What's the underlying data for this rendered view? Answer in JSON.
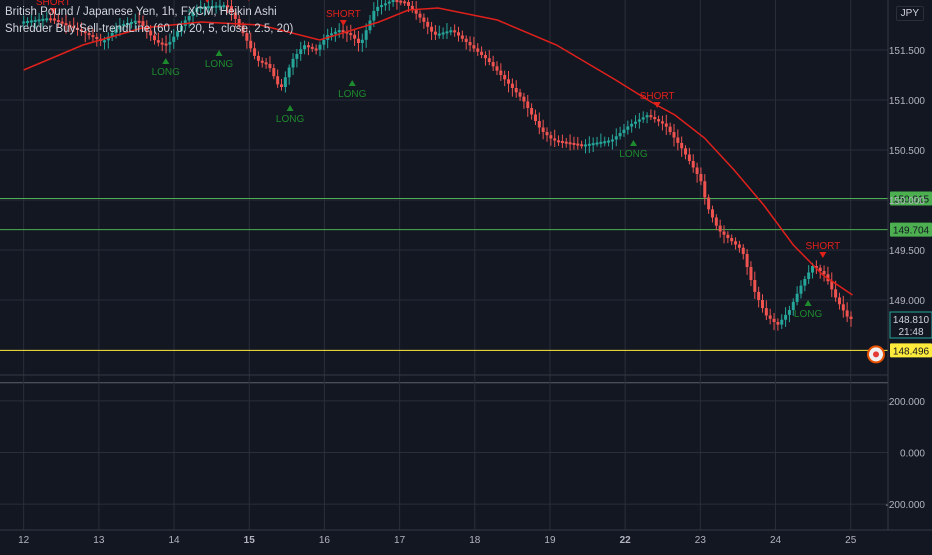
{
  "header": {
    "line1": "British Pound / Japanese Yen, 1h, FXCM, Heikin Ashi",
    "line2": "Shredder Buy-Sell-trendLine (60, 0, 20, 5, close, 2.5, 20)",
    "currency": "JPY"
  },
  "chart_data": {
    "type": "candlestick",
    "symbol": "GBPJPY",
    "timeframe": "1h",
    "colors": {
      "up": "#26a69a",
      "down": "#ef5350",
      "trendline": "#e0201b",
      "grid": "#2a2e39",
      "background": "#131722",
      "signal_long": "#1e8a2e",
      "signal_short": "#e0201b",
      "level_green": "#4caf50",
      "level_yellow": "#ffeb3b"
    },
    "x_ticks": [
      "12",
      "13",
      "14",
      "15",
      "16",
      "17",
      "18",
      "19",
      "22",
      "23",
      "24",
      "25"
    ],
    "bold_x_ticks": [
      "15",
      "22"
    ],
    "price_ticks": [
      "151.500",
      "151.000",
      "150.500",
      "150.000",
      "149.500",
      "149.000"
    ],
    "price_ylim": [
      148.25,
      152.0
    ],
    "osc_ticks": [
      "200.000",
      "0.000",
      "-200.000"
    ],
    "osc_ylim": [
      -300,
      300
    ],
    "path": [
      [
        12,
        151.78
      ],
      [
        12.5,
        151.82
      ],
      [
        13,
        151.7
      ],
      [
        13.4,
        151.58
      ],
      [
        13.7,
        151.75
      ],
      [
        14,
        151.8
      ],
      [
        14.3,
        151.58
      ],
      [
        14.5,
        151.55
      ],
      [
        14.8,
        151.8
      ],
      [
        15,
        151.93
      ],
      [
        15.5,
        151.95
      ],
      [
        15.7,
        151.75
      ],
      [
        16,
        151.4
      ],
      [
        16.2,
        151.35
      ],
      [
        16.4,
        151.1
      ],
      [
        16.6,
        151.4
      ],
      [
        16.8,
        151.55
      ],
      [
        17,
        151.5
      ],
      [
        17.2,
        151.65
      ],
      [
        17.4,
        151.7
      ],
      [
        17.6,
        151.65
      ],
      [
        17.75,
        151.55
      ],
      [
        18,
        151.92
      ],
      [
        18.3,
        152.0
      ],
      [
        18.5,
        151.98
      ],
      [
        18.8,
        151.8
      ],
      [
        19,
        151.65
      ],
      [
        19.3,
        151.7
      ],
      [
        19.6,
        151.55
      ],
      [
        19.9,
        151.4
      ],
      [
        20.2,
        151.2
      ],
      [
        20.5,
        151.0
      ],
      [
        20.8,
        150.7
      ],
      [
        21,
        150.6
      ],
      [
        21.5,
        150.55
      ],
      [
        22,
        150.6
      ],
      [
        22.3,
        150.75
      ],
      [
        22.6,
        150.85
      ],
      [
        22.9,
        150.75
      ],
      [
        23.2,
        150.5
      ],
      [
        23.5,
        150.2
      ],
      [
        23.6,
        149.95
      ],
      [
        23.8,
        149.7
      ],
      [
        24,
        149.6
      ],
      [
        24.2,
        149.5
      ],
      [
        24.4,
        149.1
      ],
      [
        24.6,
        148.85
      ],
      [
        24.8,
        148.75
      ],
      [
        25,
        148.9
      ],
      [
        25.2,
        149.15
      ],
      [
        25.4,
        149.35
      ],
      [
        25.6,
        149.25
      ],
      [
        25.8,
        149.0
      ],
      [
        26,
        148.81
      ]
    ],
    "trendline": [
      [
        12,
        151.3
      ],
      [
        13,
        151.55
      ],
      [
        14,
        151.72
      ],
      [
        15,
        151.78
      ],
      [
        16,
        151.75
      ],
      [
        17,
        151.6
      ],
      [
        18,
        151.78
      ],
      [
        18.5,
        151.9
      ],
      [
        19,
        151.92
      ],
      [
        20,
        151.8
      ],
      [
        21,
        151.55
      ],
      [
        22,
        151.2
      ],
      [
        22.6,
        150.98
      ],
      [
        23,
        150.85
      ],
      [
        23.5,
        150.62
      ],
      [
        24,
        150.3
      ],
      [
        24.5,
        149.95
      ],
      [
        25,
        149.55
      ],
      [
        25.5,
        149.25
      ],
      [
        26,
        149.05
      ]
    ],
    "signals": [
      {
        "type": "SHORT",
        "x": 12.5,
        "price": 151.82
      },
      {
        "type": "LONG",
        "x": 14.4,
        "price": 151.52
      },
      {
        "type": "SHORT",
        "x": 15.1,
        "price": 151.93
      },
      {
        "type": "LONG",
        "x": 15.3,
        "price": 151.6
      },
      {
        "type": "SHORT",
        "x": 15.8,
        "price": 151.95
      },
      {
        "type": "LONG",
        "x": 16.5,
        "price": 151.05
      },
      {
        "type": "SHORT",
        "x": 17.4,
        "price": 151.7
      },
      {
        "type": "LONG",
        "x": 17.55,
        "price": 151.3
      },
      {
        "type": "SHORT",
        "x": 22.7,
        "price": 150.88
      },
      {
        "type": "LONG",
        "x": 22.3,
        "price": 150.7
      },
      {
        "type": "LONG",
        "x": 25.25,
        "price": 149.1
      },
      {
        "type": "SHORT",
        "x": 25.5,
        "price": 149.38
      }
    ],
    "levels": [
      {
        "label": "150.015",
        "price": 150.015,
        "color": "#4caf50"
      },
      {
        "label": "149.704",
        "price": 149.704,
        "color": "#4caf50"
      },
      {
        "label": "148.496",
        "price": 148.496,
        "color": "#ffeb3b"
      }
    ],
    "last_price": {
      "price": 148.81,
      "label": "148.810",
      "countdown": "21:48"
    },
    "indicator_line_level": 270,
    "partial_top_tick": "15"
  }
}
